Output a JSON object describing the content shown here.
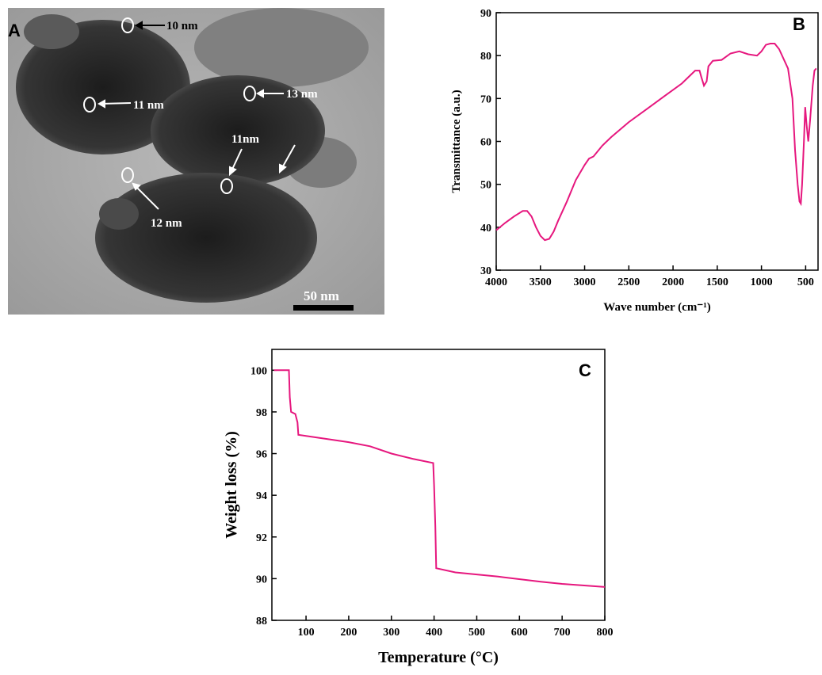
{
  "panel_a": {
    "label": "A",
    "annotations": [
      "10 nm",
      "11 nm",
      "13 nm",
      "11nm",
      "12 nm"
    ],
    "scale_bar": "50 nm"
  },
  "chart_data": [
    {
      "type": "line",
      "panel_label": "B",
      "x_label": "Wave number (cm⁻¹)",
      "y_label": "Transmittance (a.u.)",
      "color": "#e6177e",
      "xlim": [
        4000,
        360
      ],
      "ylim": [
        30,
        90
      ],
      "xticks": [
        4000,
        3500,
        3000,
        2500,
        2000,
        1500,
        1000,
        500
      ],
      "yticks": [
        30,
        40,
        50,
        60,
        70,
        80,
        90
      ],
      "x": [
        4000,
        3900,
        3800,
        3700,
        3650,
        3600,
        3550,
        3500,
        3450,
        3400,
        3350,
        3300,
        3200,
        3100,
        3000,
        2950,
        2900,
        2800,
        2700,
        2500,
        2300,
        2100,
        1900,
        1800,
        1750,
        1700,
        1680,
        1650,
        1620,
        1600,
        1550,
        1450,
        1350,
        1250,
        1150,
        1050,
        1000,
        950,
        900,
        850,
        800,
        700,
        650,
        620,
        590,
        570,
        555,
        540,
        520,
        505,
        490,
        470,
        450,
        420,
        400,
        380
      ],
      "values": [
        39.3,
        41,
        42.5,
        43.8,
        43.8,
        42.5,
        40,
        38,
        37,
        37.3,
        39,
        41.5,
        46,
        51,
        54.5,
        56,
        56.5,
        59,
        61,
        64.5,
        67.5,
        70.5,
        73.5,
        75.5,
        76.5,
        76.5,
        75,
        73,
        74,
        77.5,
        78.8,
        79,
        80.5,
        81,
        80.3,
        80,
        81,
        82.5,
        82.8,
        82.8,
        81.5,
        77,
        70,
        58,
        50,
        46,
        45.5,
        50,
        60,
        68,
        64,
        60,
        65,
        73,
        76.5,
        77
      ]
    },
    {
      "type": "line",
      "panel_label": "C",
      "x_label": "Temperature (°C)",
      "y_label": "Weight loss (%)",
      "color": "#e6177e",
      "xlim": [
        20,
        800
      ],
      "ylim": [
        88,
        101
      ],
      "xticks": [
        100,
        200,
        300,
        400,
        500,
        600,
        700,
        800
      ],
      "yticks": [
        88,
        90,
        92,
        94,
        96,
        98,
        100
      ],
      "x": [
        25,
        60,
        62,
        65,
        75,
        80,
        82,
        100,
        200,
        250,
        300,
        350,
        398,
        400,
        403,
        405,
        450,
        550,
        650,
        700,
        800
      ],
      "values": [
        100,
        100,
        98.7,
        98,
        97.9,
        97.5,
        96.9,
        96.85,
        96.55,
        96.35,
        96,
        95.75,
        95.55,
        94.5,
        92.5,
        90.5,
        90.3,
        90.1,
        89.85,
        89.75,
        89.6
      ]
    }
  ]
}
